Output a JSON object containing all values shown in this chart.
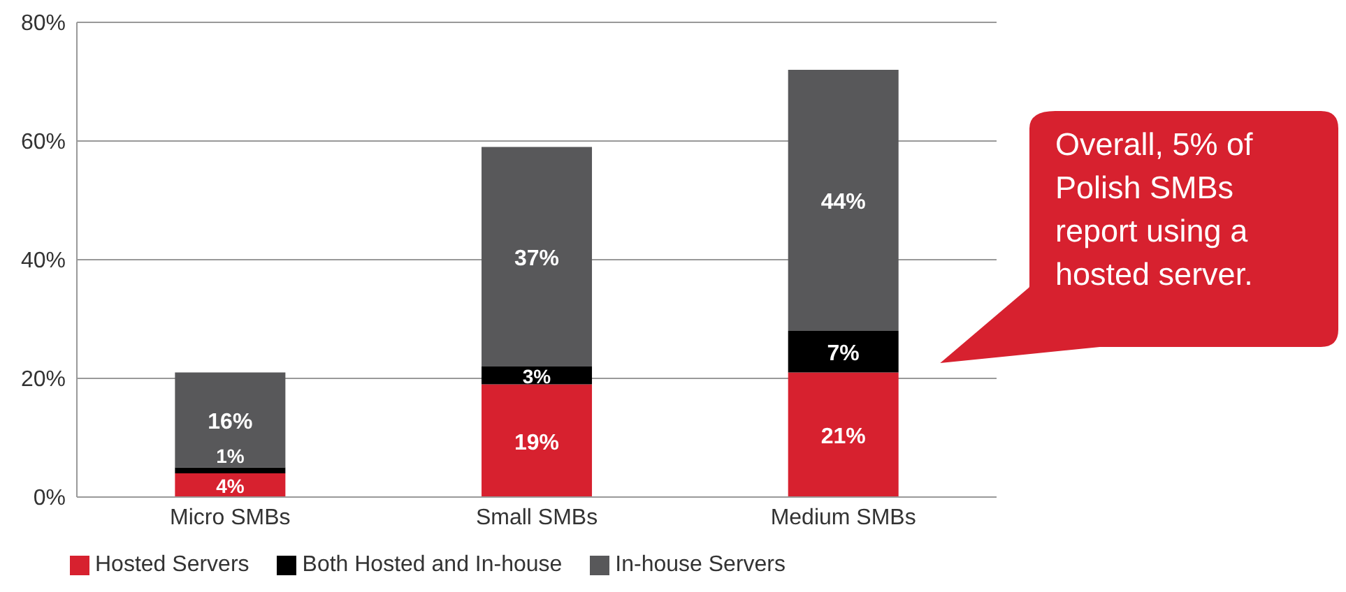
{
  "chart_data": {
    "type": "bar",
    "stacked": true,
    "categories": [
      "Micro SMBs",
      "Small SMBs",
      "Medium SMBs"
    ],
    "series": [
      {
        "name": "Hosted Servers",
        "color": "#d7212f",
        "values": [
          4,
          19,
          21
        ],
        "value_labels": [
          "4%",
          "19%",
          "21%"
        ]
      },
      {
        "name": "Both Hosted and In-house",
        "color": "#000000",
        "values": [
          1,
          3,
          7
        ],
        "value_labels": [
          "1%",
          "3%",
          "7%"
        ]
      },
      {
        "name": "In-house Servers",
        "color": "#58585a",
        "values": [
          16,
          37,
          44
        ],
        "value_labels": [
          "16%",
          "37%",
          "44%"
        ]
      }
    ],
    "ylim": [
      0,
      80
    ],
    "yticks": [
      {
        "value": 0,
        "label": "0%"
      },
      {
        "value": 20,
        "label": "20%"
      },
      {
        "value": 40,
        "label": "40%"
      },
      {
        "value": 60,
        "label": "60%"
      },
      {
        "value": 80,
        "label": "80%"
      }
    ],
    "grid": "y",
    "legend": "bottom left",
    "annotations": [
      "Overall, 5% of Polish SMBs report using a hosted server."
    ]
  }
}
